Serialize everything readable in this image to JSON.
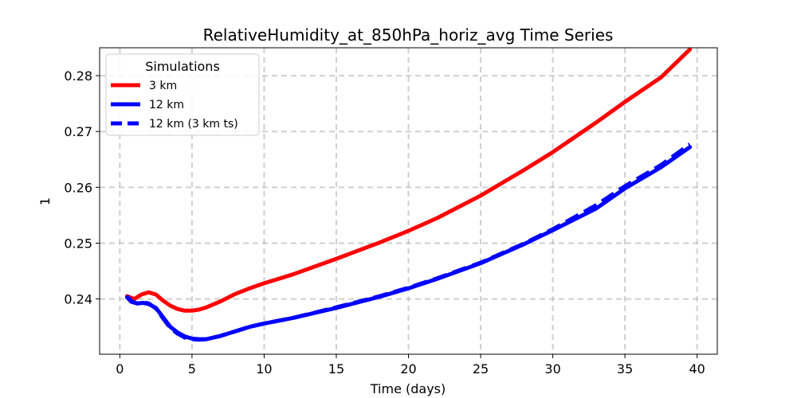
{
  "chart_data": {
    "type": "line",
    "title": "RelativeHumidity_at_850hPa_horiz_avg Time Series",
    "xlabel": "Time (days)",
    "ylabel": "1",
    "xlim": [
      -1.4,
      41.4
    ],
    "ylim": [
      0.2301,
      0.285
    ],
    "xticks": [
      0,
      5,
      10,
      15,
      20,
      25,
      30,
      35,
      40
    ],
    "yticks": [
      0.24,
      0.25,
      0.26,
      0.27,
      0.28
    ],
    "grid": true,
    "legend": {
      "title": "Simulations",
      "placement": "top-left"
    },
    "series": [
      {
        "name": "3 km",
        "color": "#ff0000",
        "linestyle": "solid",
        "x": [
          0.5,
          1.0,
          1.5,
          2.0,
          2.5,
          3.0,
          3.5,
          4.0,
          4.5,
          5.0,
          5.5,
          6.0,
          7.0,
          8.0,
          9.0,
          10.0,
          12.0,
          15.0,
          18.0,
          20.0,
          22.0,
          25.0,
          28.0,
          30.0,
          33.0,
          35.0,
          37.5,
          39.5
        ],
        "y": [
          0.2405,
          0.24,
          0.2408,
          0.2412,
          0.2408,
          0.2397,
          0.2388,
          0.2382,
          0.2379,
          0.2379,
          0.2381,
          0.2385,
          0.2396,
          0.2409,
          0.2419,
          0.2428,
          0.2444,
          0.2472,
          0.2501,
          0.2522,
          0.2545,
          0.2585,
          0.2631,
          0.2663,
          0.2716,
          0.2753,
          0.2797,
          0.2847
        ]
      },
      {
        "name": "12 km",
        "color": "#0000ff",
        "linestyle": "solid",
        "x": [
          0.5,
          0.8,
          1.2,
          1.6,
          2.0,
          2.5,
          3.0,
          3.5,
          4.0,
          4.5,
          5.0,
          5.5,
          6.0,
          7.0,
          8.0,
          9.0,
          10.0,
          12.0,
          15.0,
          18.0,
          20.0,
          22.0,
          25.0,
          28.0,
          30.0,
          33.0,
          35.0,
          37.5,
          39.5
        ],
        "y": [
          0.2403,
          0.2395,
          0.2392,
          0.2393,
          0.2391,
          0.2384,
          0.2367,
          0.235,
          0.234,
          0.2333,
          0.2329,
          0.2328,
          0.2328,
          0.2334,
          0.2342,
          0.235,
          0.2356,
          0.2366,
          0.2384,
          0.2404,
          0.2419,
          0.2436,
          0.2464,
          0.2498,
          0.2523,
          0.2562,
          0.2598,
          0.2636,
          0.2672
        ]
      },
      {
        "name": "12 km (3 km ts)",
        "color": "#0000ff",
        "linestyle": "dashed",
        "x": [
          0.5,
          0.8,
          1.2,
          1.6,
          2.0,
          2.5,
          3.0,
          3.5,
          4.0,
          4.5,
          5.0,
          5.5,
          6.0,
          7.0,
          8.0,
          9.0,
          10.0,
          12.0,
          15.0,
          18.0,
          20.0,
          22.0,
          25.0,
          28.0,
          30.0,
          33.0,
          35.0,
          37.5,
          39.5
        ],
        "y": [
          0.2405,
          0.2396,
          0.2392,
          0.2394,
          0.2392,
          0.2383,
          0.2365,
          0.2348,
          0.2338,
          0.2331,
          0.2328,
          0.2327,
          0.2328,
          0.2334,
          0.2342,
          0.235,
          0.2356,
          0.2366,
          0.2385,
          0.2405,
          0.242,
          0.2437,
          0.2465,
          0.2499,
          0.2525,
          0.2568,
          0.2602,
          0.264,
          0.2677
        ]
      }
    ]
  }
}
